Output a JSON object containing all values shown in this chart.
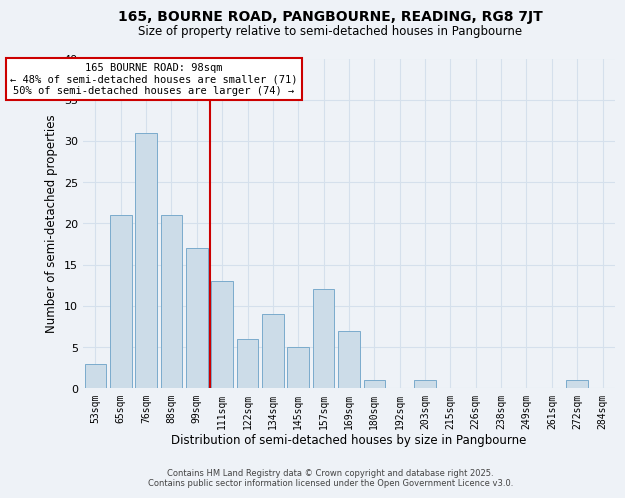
{
  "title": "165, BOURNE ROAD, PANGBOURNE, READING, RG8 7JT",
  "subtitle": "Size of property relative to semi-detached houses in Pangbourne",
  "xlabel": "Distribution of semi-detached houses by size in Pangbourne",
  "ylabel": "Number of semi-detached properties",
  "categories": [
    "53sqm",
    "65sqm",
    "76sqm",
    "88sqm",
    "99sqm",
    "111sqm",
    "122sqm",
    "134sqm",
    "145sqm",
    "157sqm",
    "169sqm",
    "180sqm",
    "192sqm",
    "203sqm",
    "215sqm",
    "226sqm",
    "238sqm",
    "249sqm",
    "261sqm",
    "272sqm",
    "284sqm"
  ],
  "values": [
    3,
    21,
    31,
    21,
    17,
    13,
    6,
    9,
    5,
    12,
    7,
    1,
    0,
    1,
    0,
    0,
    0,
    0,
    0,
    1,
    0
  ],
  "bar_color": "#ccdce8",
  "bar_edge_color": "#7aabcc",
  "grid_color": "#d5e0ec",
  "bg_color": "#eef2f7",
  "vline_color": "#cc0000",
  "annotation_line1": "165 BOURNE ROAD: 98sqm",
  "annotation_line2": "← 48% of semi-detached houses are smaller (71)",
  "annotation_line3": "50% of semi-detached houses are larger (74) →",
  "annotation_box_color": "#cc0000",
  "ylim": [
    0,
    40
  ],
  "yticks": [
    0,
    5,
    10,
    15,
    20,
    25,
    30,
    35,
    40
  ],
  "footer_line1": "Contains HM Land Registry data © Crown copyright and database right 2025.",
  "footer_line2": "Contains public sector information licensed under the Open Government Licence v3.0."
}
